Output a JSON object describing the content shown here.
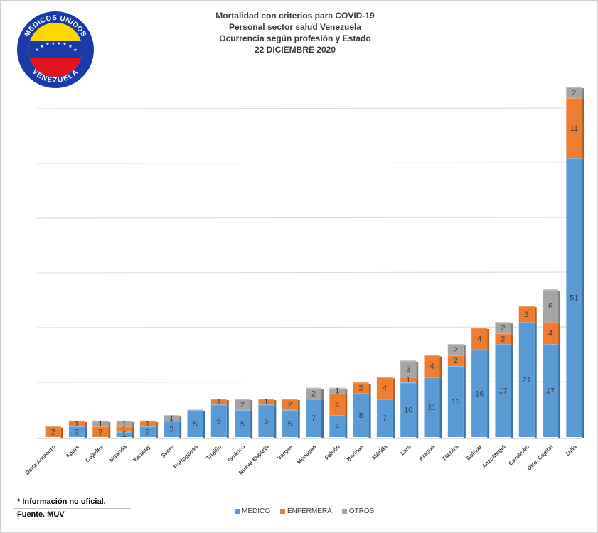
{
  "header": {
    "title_line1": "Mortalidad con criterios para COVID-19",
    "title_line2": "Personal sector salud Venezuela",
    "title_line3": "Ocurrencia según profesión y Estado",
    "title_line4": "22 DICIEMBRE 2020"
  },
  "logo": {
    "top_text": "MEDICOS UNIDOS",
    "bottom_text": "VENEZUELA"
  },
  "notes": {
    "line1": "* Información no oficial.",
    "line2": "Fuente. MUV"
  },
  "colors": {
    "medico": "#5b9bd5",
    "enfermera": "#ed7d31",
    "otros": "#a5a5a5",
    "grid": "#d9d9d9"
  },
  "chart_data": {
    "type": "bar",
    "stacked": true,
    "title": "Mortalidad con criterios para COVID-19 — Personal sector salud Venezuela — Ocurrencia según profesión y Estado — 22 DICIEMBRE 2020",
    "xlabel": "",
    "ylabel": "",
    "ylim": [
      0,
      65
    ],
    "grid": true,
    "legend_position": "bottom",
    "categories": [
      "Delta Amacuro",
      "Apure",
      "Cojedes",
      "Miranda",
      "Yaracuy",
      "Sucre",
      "Portuguesa",
      "Trujillo",
      "Guárico",
      "Nueva Esparta",
      "Vargas",
      "Monagas",
      "Falcón",
      "Barinas",
      "Mérida",
      "Lara",
      "Aragua",
      "Táchira",
      "Bolívar",
      "Anzoátegui",
      "Carabobo",
      "Dtto. Capital",
      "Zulia"
    ],
    "series": [
      {
        "name": "MEDICO",
        "values": [
          0,
          2,
          0,
          1,
          2,
          3,
          5,
          6,
          5,
          6,
          5,
          7,
          4,
          8,
          7,
          10,
          11,
          13,
          16,
          17,
          21,
          17,
          51
        ]
      },
      {
        "name": "ENFERMERA",
        "values": [
          2,
          1,
          2,
          1,
          1,
          0,
          0,
          1,
          0,
          1,
          2,
          0,
          4,
          2,
          4,
          1,
          4,
          2,
          4,
          2,
          3,
          4,
          11
        ]
      },
      {
        "name": "OTROS",
        "values": [
          0,
          0,
          1,
          1,
          0,
          1,
          0,
          0,
          2,
          0,
          0,
          2,
          1,
          0,
          0,
          3,
          0,
          2,
          0,
          2,
          0,
          6,
          2
        ]
      }
    ]
  }
}
